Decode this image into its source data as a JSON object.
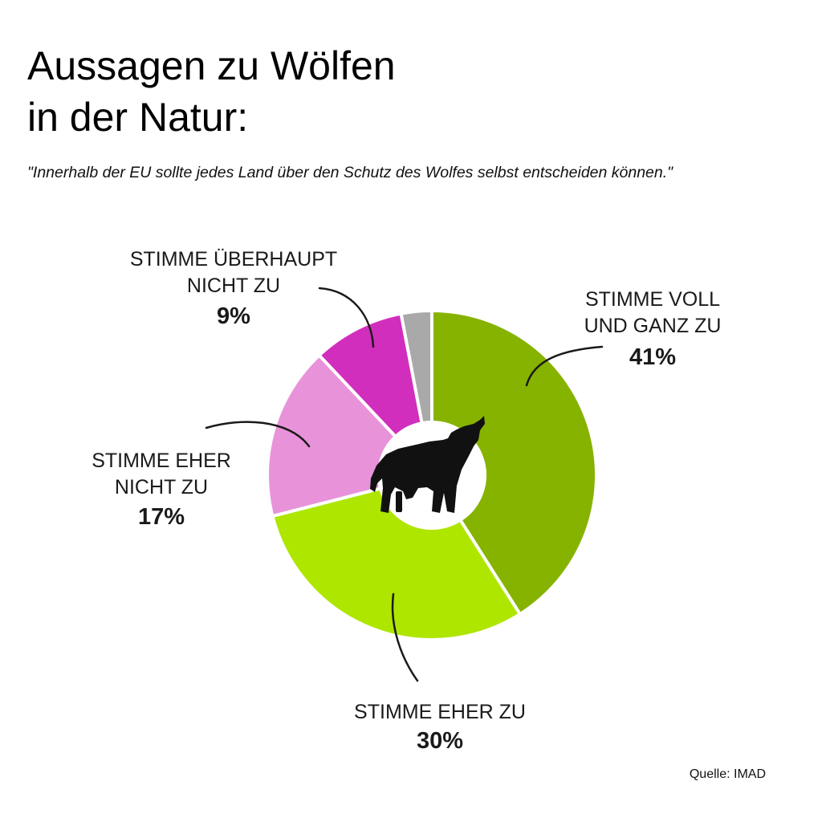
{
  "header": {
    "title_line1": "Aussagen zu Wölfen",
    "title_line2": "in der Natur:",
    "subtitle": "\"Innerhalb der EU sollte jedes Land über den Schutz des Wolfes selbst entscheiden können.\""
  },
  "chart_data": {
    "type": "pie",
    "style": "donut",
    "title": "Aussagen zu Wölfen in der Natur:",
    "subtitle": "\"Innerhalb der EU sollte jedes Land über den Schutz des Wolfes selbst entscheiden können.\"",
    "slices": [
      {
        "label_lines": [
          "STIMME VOLL",
          "UND GANZ ZU"
        ],
        "value": 41,
        "value_label": "41%",
        "color": "#86b300"
      },
      {
        "label_lines": [
          "STIMME EHER ZU"
        ],
        "value": 30,
        "value_label": "30%",
        "color": "#aee600"
      },
      {
        "label_lines": [
          "STIMME EHER",
          "NICHT ZU"
        ],
        "value": 17,
        "value_label": "17%",
        "color": "#e893d9"
      },
      {
        "label_lines": [
          "STIMME ÜBERHAUPT",
          "NICHT ZU"
        ],
        "value": 9,
        "value_label": "9%",
        "color": "#d12ebd"
      },
      {
        "label_lines": [],
        "value": 3,
        "value_label": "",
        "color": "#a9a9a9"
      }
    ],
    "center_icon": "howling-wolf-icon"
  },
  "footer": {
    "source": "Quelle: IMAD"
  }
}
